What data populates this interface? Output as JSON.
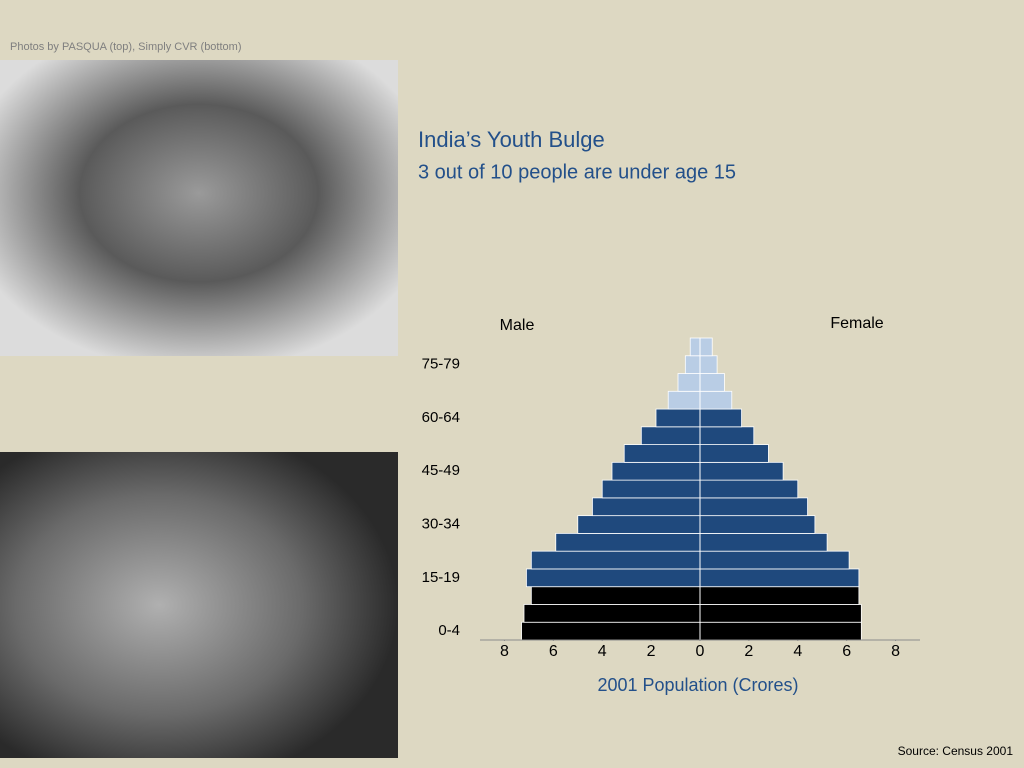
{
  "credit": "Photos by PASQUA (top), Simply CVR (bottom)",
  "source": "Source: Census 2001",
  "chart_data": {
    "type": "pyramid",
    "title": "India’s Youth Bulge",
    "subtitle": "3 out of 10 people are under age 15",
    "x_label": "2001 Population (Crores)",
    "categories": [
      "0-4",
      null,
      null,
      "15-19",
      null,
      null,
      "30-34",
      null,
      null,
      "45-49",
      null,
      null,
      "60-64",
      null,
      null,
      "75-79",
      null
    ],
    "series": [
      {
        "name": "Male",
        "side": "left",
        "values": [
          7.3,
          7.2,
          6.9,
          7.1,
          6.9,
          5.9,
          5.0,
          4.4,
          4.0,
          3.6,
          3.1,
          2.4,
          1.8,
          1.3,
          0.9,
          0.6,
          0.4
        ]
      },
      {
        "name": "Female",
        "side": "right",
        "values": [
          6.6,
          6.6,
          6.5,
          6.5,
          6.1,
          5.2,
          4.7,
          4.4,
          4.0,
          3.4,
          2.8,
          2.2,
          1.7,
          1.3,
          1.0,
          0.7,
          0.5
        ]
      }
    ],
    "bar_colors": [
      "#000000",
      "#000000",
      "#000000",
      "#1f497d",
      "#1f497d",
      "#1f497d",
      "#1f497d",
      "#1f497d",
      "#1f497d",
      "#1f497d",
      "#1f497d",
      "#1f497d",
      "#1f497d",
      "#b9cde5",
      "#b9cde5",
      "#b9cde5",
      "#b9cde5"
    ],
    "xlim": [
      -9,
      9
    ],
    "xticks": [
      {
        "value": -8,
        "label": "8"
      },
      {
        "value": -6,
        "label": "6"
      },
      {
        "value": -4,
        "label": "4"
      },
      {
        "value": -2,
        "label": "2"
      },
      0,
      2,
      4,
      6,
      8
    ]
  }
}
